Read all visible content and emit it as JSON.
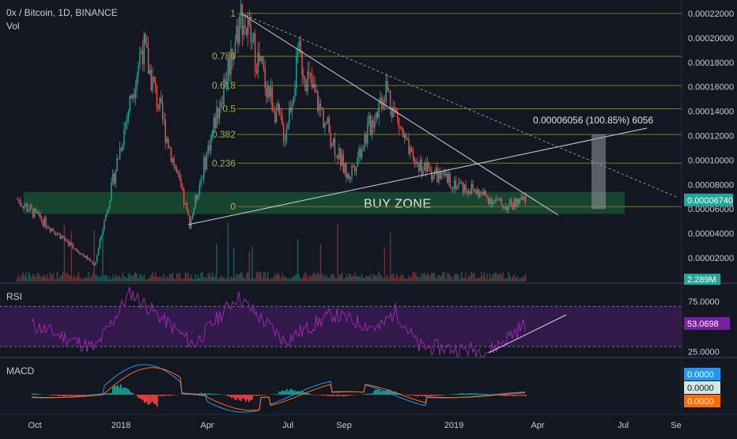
{
  "header": {
    "title": "0x / Bitcoin, 1D, BINANCE",
    "volume_label": "Vol"
  },
  "panels": {
    "rsi_label": "RSI",
    "macd_label": "MACD"
  },
  "colors": {
    "background": "#131722",
    "up": "#26a69a",
    "down": "#ef5350",
    "fib_line": "#6f7f2a",
    "fib_text": "#a8b43c",
    "buy_zone": "#1e6b3a",
    "rsi": "#9c27b0",
    "macd_line": "#2196f3",
    "signal_line": "#ff6d00",
    "price_badge": "#26a69a",
    "axis_text": "#c9ccd4"
  },
  "chart_data": [
    {
      "type": "candlestick",
      "title": "0x / Bitcoin, 1D, BINANCE",
      "x_tick_labels": [
        "Oct",
        "2018",
        "Apr",
        "Jul",
        "Sep",
        "2019",
        "Apr",
        "Jul",
        "Se"
      ],
      "y_tick_labels": [
        "0.00022000",
        "0.00020000",
        "0.00018000",
        "0.00016000",
        "0.00014000",
        "0.00012000",
        "0.00010000",
        "0.00008000",
        "0.00006000",
        "0.00004000",
        "0.00002000"
      ],
      "ylim": [
        0.0,
        0.00023
      ],
      "last_price": "0.00006740",
      "key_prices": [
        {
          "label": "start (Sep 2017)",
          "value": 6.8e-05
        },
        {
          "label": "low Dec 2017",
          "value": 1.4e-05
        },
        {
          "label": "high Jan 2018",
          "value": 0.000195
        },
        {
          "label": "low Mar 2018",
          "value": 4.8e-05
        },
        {
          "label": "high May 2018",
          "value": 0.00022
        },
        {
          "label": "high Jul 2018",
          "value": 0.000185
        },
        {
          "label": "high Oct 2018",
          "value": 0.00016
        },
        {
          "label": "low Feb 2019",
          "value": 6.2e-05
        },
        {
          "label": "last",
          "value": 6.74e-05
        }
      ],
      "fibonacci_levels": [
        {
          "label": "1",
          "value": 0.00022
        },
        {
          "label": "0.786",
          "value": 0.000185
        },
        {
          "label": "0.618",
          "value": 0.000161
        },
        {
          "label": "0.5",
          "value": 0.000142
        },
        {
          "label": "0.382",
          "value": 0.000121
        },
        {
          "label": "0.236",
          "value": 9.75e-05
        },
        {
          "label": "0",
          "value": 6.2e-05
        }
      ],
      "buy_zone": {
        "label": "BUY ZONE",
        "from": 5.6e-05,
        "to": 7.4e-05
      },
      "measure": {
        "label": "0.00006056 (100.85%) 6056",
        "from": 6e-05,
        "to": 0.000121
      },
      "volume": {
        "label": "Vol",
        "last_value": "2.289M"
      }
    },
    {
      "type": "line",
      "name": "RSI",
      "y_tick_labels": [
        "75.0000",
        "25.0000"
      ],
      "levels": [
        70,
        30
      ],
      "ylim": [
        20,
        90
      ],
      "last_value": "53.0698",
      "key_values": [
        52,
        28,
        84,
        32,
        80,
        36,
        62,
        30,
        66,
        26,
        53
      ]
    },
    {
      "type": "line",
      "name": "MACD",
      "values_displayed": [
        "0.0000",
        "0.0000",
        "0.0000"
      ]
    }
  ]
}
